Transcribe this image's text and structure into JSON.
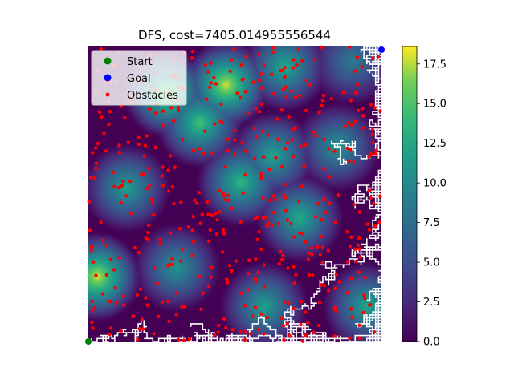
{
  "chart_data": {
    "type": "heatmap",
    "title": "DFS, cost=7405.014955556544",
    "xlabel": "",
    "ylabel": "",
    "grid": false,
    "legend_position": "top-left",
    "colormap": "viridis",
    "legend": [
      {
        "label": "Start",
        "color": "#008000",
        "marker": "circle"
      },
      {
        "label": "Goal",
        "color": "#0000ff",
        "marker": "circle"
      },
      {
        "label": "Obstacles",
        "color": "#ff0000",
        "marker": "circle"
      }
    ],
    "colorbar": {
      "range": [
        0.0,
        18.6
      ],
      "ticks": [
        0.0,
        2.5,
        5.0,
        7.5,
        10.0,
        12.5,
        15.0,
        17.5
      ],
      "tick_labels": [
        "0.0",
        "2.5",
        "5.0",
        "7.5",
        "10.0",
        "12.5",
        "15.0",
        "17.5"
      ]
    },
    "start": [
      0,
      0
    ],
    "goal": [
      100,
      100
    ],
    "field_peaks": [
      {
        "x": 3,
        "y": 22,
        "value": 18.5
      },
      {
        "x": 27,
        "y": 84,
        "value": 17.0
      },
      {
        "x": 38,
        "y": 74,
        "value": 15.0
      },
      {
        "x": 52,
        "y": 54,
        "value": 14.0
      },
      {
        "x": 47,
        "y": 87,
        "value": 18.5
      },
      {
        "x": 67,
        "y": 93,
        "value": 13.0
      },
      {
        "x": 63,
        "y": 63,
        "value": 12.5
      },
      {
        "x": 72,
        "y": 42,
        "value": 13.0
      },
      {
        "x": 85,
        "y": 66,
        "value": 11.0
      },
      {
        "x": 13,
        "y": 52,
        "value": 12.0
      },
      {
        "x": 30,
        "y": 25,
        "value": 11.0
      },
      {
        "x": 60,
        "y": 12,
        "value": 12.0
      },
      {
        "x": 95,
        "y": 12,
        "value": 12.5
      },
      {
        "x": 90,
        "y": 95,
        "value": 9.0
      }
    ],
    "path_description": "DFS path drawn as white line"
  }
}
